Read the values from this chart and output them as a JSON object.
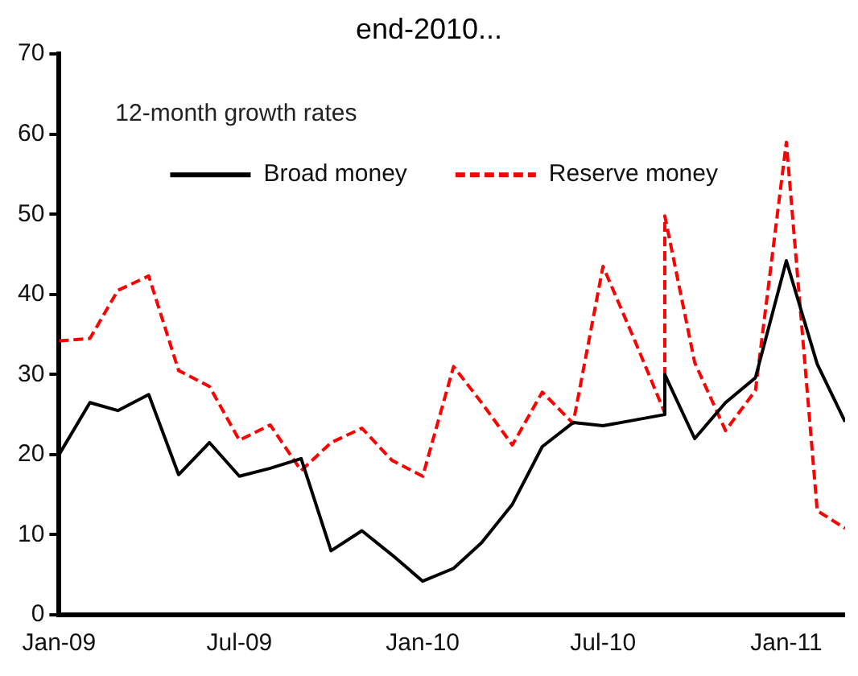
{
  "chart_data": {
    "type": "line",
    "title": "end-2010...",
    "annotations": [
      "12-month growth rates"
    ],
    "xlim": [
      "2009-01",
      "2011-03"
    ],
    "xticks": [
      {
        "value": "2009-01",
        "label": "Jan-09"
      },
      {
        "value": "2009-07",
        "label": "Jul-09"
      },
      {
        "value": "2010-01",
        "label": "Jan-10"
      },
      {
        "value": "2010-07",
        "label": "Jul-10"
      },
      {
        "value": "2011-01",
        "label": "Jan-11"
      }
    ],
    "ylim": [
      0,
      70
    ],
    "yticks": [
      0,
      10,
      20,
      30,
      40,
      50,
      60,
      70
    ],
    "grid": false,
    "legend": "top",
    "marker": "none",
    "series": [
      {
        "name": "Broad money",
        "color": "#000000",
        "line_style": "solid",
        "x": [
          "2009-01",
          "2009-02",
          "2009-03",
          "2009-04",
          "2009-05",
          "2009-06",
          "2009-07",
          "2009-08",
          "2009-09",
          "2009-10",
          "2009-11",
          "2009-12",
          "2010-01",
          "2010-02",
          "2010-03",
          "2010-04",
          "2010-05",
          "2010-06",
          "2010-07",
          "2010-08",
          "2010-09",
          "2010-09",
          "2010-10",
          "2010-11",
          "2010-12",
          "2011-01",
          "2011-02",
          "2011-03"
        ],
        "values": [
          20,
          26.5,
          25.5,
          27.5,
          17.5,
          21.5,
          17.3,
          18.3,
          19.5,
          8,
          10.5,
          7.5,
          4.2,
          5.8,
          9,
          13.8,
          21,
          24,
          23.6,
          24.3,
          25,
          30,
          22,
          26.5,
          29.6,
          44.2,
          31.3,
          24.1
        ]
      },
      {
        "name": "Reserve money",
        "color": "#ff0000",
        "line_style": "dashed",
        "x": [
          "2009-01",
          "2009-02",
          "2009-03",
          "2009-04",
          "2009-05",
          "2009-06",
          "2009-07",
          "2009-08",
          "2009-09",
          "2009-10",
          "2009-11",
          "2009-12",
          "2010-01",
          "2010-02",
          "2010-03",
          "2010-04",
          "2010-05",
          "2010-06",
          "2010-07",
          "2010-08",
          "2010-09",
          "2010-09",
          "2010-10",
          "2010-11",
          "2010-12",
          "2011-01",
          "2011-02",
          "2011-03"
        ],
        "values": [
          34.2,
          34.5,
          40.5,
          42.3,
          30.5,
          28.5,
          21.8,
          23.7,
          18,
          21.5,
          23.3,
          19.3,
          17.3,
          31,
          26.5,
          21.2,
          27.8,
          23.9,
          43.5,
          34.5,
          25.2,
          49.8,
          31.5,
          23,
          28,
          59,
          13,
          10.8
        ]
      }
    ]
  }
}
